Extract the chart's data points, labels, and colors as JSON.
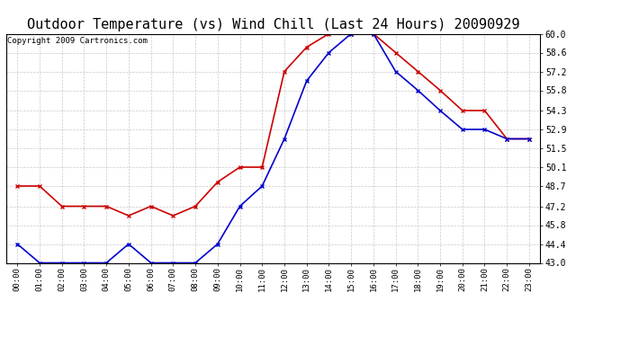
{
  "title": "Outdoor Temperature (vs) Wind Chill (Last 24 Hours) 20090929",
  "copyright": "Copyright 2009 Cartronics.com",
  "x_labels": [
    "00:00",
    "01:00",
    "02:00",
    "03:00",
    "04:00",
    "05:00",
    "06:00",
    "07:00",
    "08:00",
    "09:00",
    "10:00",
    "11:00",
    "12:00",
    "13:00",
    "14:00",
    "15:00",
    "16:00",
    "17:00",
    "18:00",
    "19:00",
    "20:00",
    "21:00",
    "22:00",
    "23:00"
  ],
  "outdoor_temp": [
    48.7,
    48.7,
    47.2,
    47.2,
    47.2,
    46.5,
    47.2,
    46.5,
    47.2,
    49.0,
    50.1,
    50.1,
    57.2,
    59.0,
    60.0,
    60.0,
    60.0,
    58.6,
    57.2,
    55.8,
    54.3,
    54.3,
    52.2,
    52.2
  ],
  "wind_chill": [
    44.4,
    43.0,
    43.0,
    43.0,
    43.0,
    44.4,
    43.0,
    43.0,
    43.0,
    44.4,
    47.2,
    48.7,
    52.2,
    56.5,
    58.6,
    60.0,
    60.0,
    57.2,
    55.8,
    54.3,
    52.9,
    52.9,
    52.2,
    52.2
  ],
  "outdoor_color": "#cc0000",
  "wind_chill_color": "#0000cc",
  "ylim_min": 43.0,
  "ylim_max": 60.0,
  "yticks": [
    43.0,
    44.4,
    45.8,
    47.2,
    48.7,
    50.1,
    51.5,
    52.9,
    54.3,
    55.8,
    57.2,
    58.6,
    60.0
  ],
  "background_color": "#ffffff",
  "grid_color": "#bbbbbb",
  "title_fontsize": 11,
  "copyright_fontsize": 6.5
}
